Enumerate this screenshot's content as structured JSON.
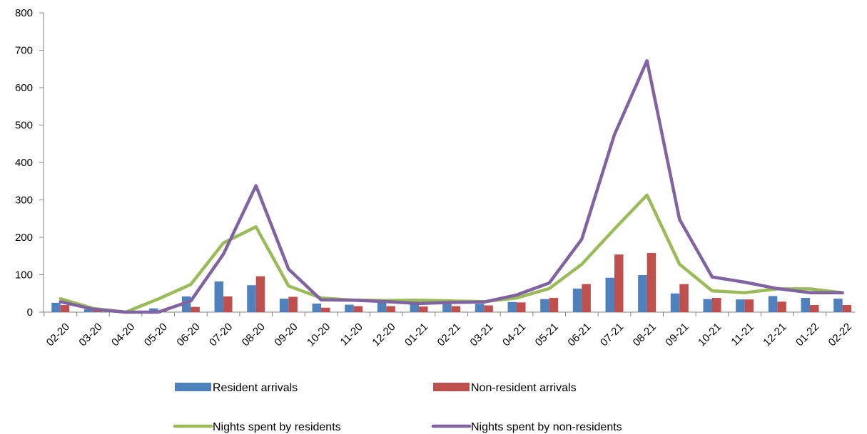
{
  "chart_data": {
    "type": "bar",
    "categories": [
      "02-20",
      "03-20",
      "04-20",
      "05-20",
      "06-20",
      "07-20",
      "08-20",
      "09-20",
      "10-20",
      "11-20",
      "12-20",
      "01-21",
      "02-21",
      "03-21",
      "04-21",
      "05-21",
      "06-21",
      "07-21",
      "08-21",
      "09-21",
      "10-21",
      "11-21",
      "12-21",
      "01-22",
      "02-22"
    ],
    "ylim": [
      0,
      800
    ],
    "yticks": [
      0,
      100,
      200,
      300,
      400,
      500,
      600,
      700,
      800
    ],
    "grid": false,
    "legend_position": "bottom",
    "series": [
      {
        "name": "Resident arrivals",
        "kind": "bar",
        "color": "#4F81BD",
        "values": [
          25,
          8,
          1,
          10,
          42,
          82,
          72,
          36,
          23,
          20,
          27,
          22,
          24,
          22,
          27,
          35,
          63,
          92,
          99,
          50,
          35,
          34,
          43,
          38,
          36
        ]
      },
      {
        "name": "Non-resident arrivals",
        "kind": "bar",
        "color": "#C0504D",
        "values": [
          19,
          5,
          0,
          2,
          14,
          42,
          96,
          41,
          12,
          16,
          16,
          15,
          16,
          18,
          26,
          38,
          75,
          154,
          158,
          75,
          38,
          34,
          28,
          19,
          19
        ]
      },
      {
        "name": "Nights spent by residents",
        "kind": "line",
        "color": "#9BBB59",
        "values": [
          36,
          10,
          0,
          35,
          74,
          185,
          228,
          70,
          38,
          32,
          31,
          32,
          30,
          28,
          38,
          63,
          128,
          222,
          313,
          128,
          57,
          52,
          62,
          62,
          52
        ]
      },
      {
        "name": "Nights spent by non-residents",
        "kind": "line",
        "color": "#8064A2",
        "values": [
          28,
          8,
          0,
          0,
          30,
          155,
          338,
          115,
          33,
          32,
          28,
          23,
          26,
          27,
          46,
          78,
          195,
          474,
          672,
          248,
          94,
          80,
          63,
          52,
          52
        ]
      }
    ]
  }
}
